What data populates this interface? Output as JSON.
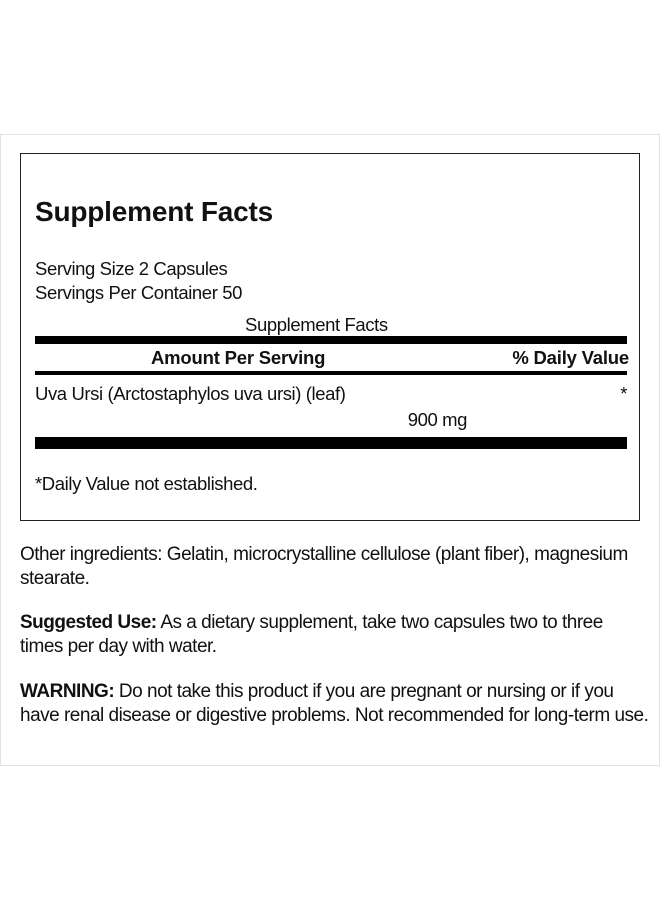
{
  "label": {
    "title": "Supplement Facts",
    "serving_size": "Serving Size 2 Capsules",
    "servings_per_container": "Servings Per Container 50",
    "table_caption": "Supplement Facts",
    "header_amount": "Amount Per Serving",
    "header_daily_value": "% Daily Value",
    "ingredient": {
      "name": "Uva Ursi (Arctostaphylos uva ursi) (leaf)",
      "amount": "900 mg",
      "daily_value": "*"
    },
    "footnote": "*Daily Value not established."
  },
  "other_ingredients": "Other ingredients: Gelatin, microcrystalline cellulose (plant fiber), magnesium stearate.",
  "suggested_use": {
    "label": "Suggested Use:",
    "text": " As a dietary supplement, take two capsules two to three times per day with water."
  },
  "warning": {
    "label": "WARNING:",
    "text": " Do not take this product if you are pregnant or nursing or if you have renal disease or digestive problems. Not recommended for long-term use."
  }
}
